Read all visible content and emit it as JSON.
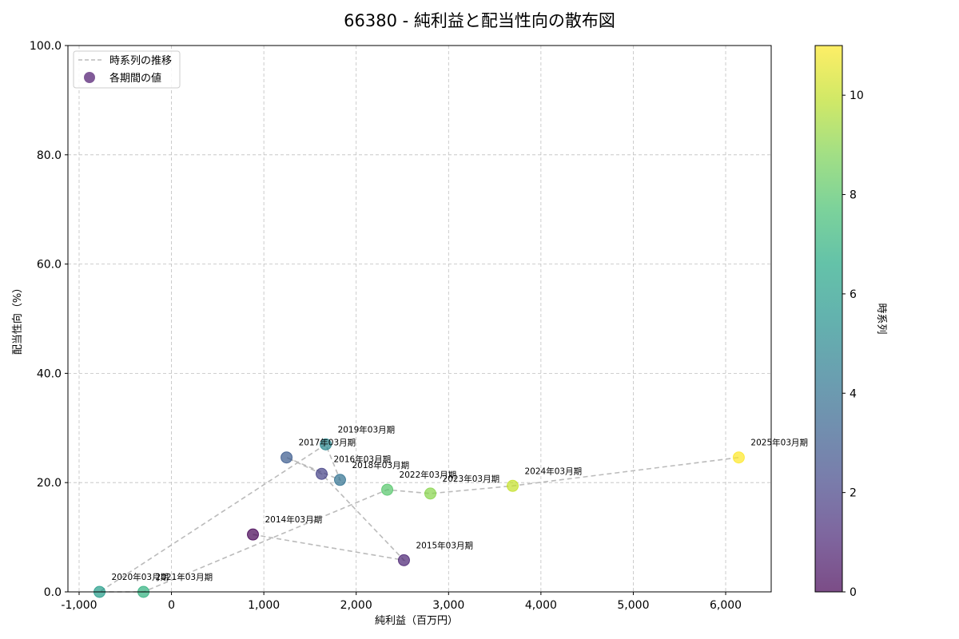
{
  "chart_data": {
    "type": "scatter",
    "title": "66380 - 純利益と配当性向の散布図",
    "xlabel": "純利益（百万円）",
    "ylabel": "配当性向（%）",
    "xlim": [
      -1121,
      6493
    ],
    "ylim": [
      0,
      100
    ],
    "x_ticks": [
      -1000,
      0,
      1000,
      2000,
      3000,
      4000,
      5000,
      6000
    ],
    "x_tick_labels": [
      "-1,000",
      "0",
      "1,000",
      "2,000",
      "3,000",
      "4,000",
      "5,000",
      "6,000"
    ],
    "y_ticks": [
      0,
      20,
      40,
      60,
      80,
      100
    ],
    "y_tick_labels": [
      "0.0",
      "20.0",
      "40.0",
      "60.0",
      "80.0",
      "100.0"
    ],
    "grid": true,
    "legend": {
      "position": "upper left",
      "entries": [
        {
          "label": "時系列の推移",
          "style": "dashed-line",
          "color": "#bbbbbb"
        },
        {
          "label": "各期間の値",
          "style": "marker",
          "color": "#6a3d86"
        }
      ]
    },
    "colorbar": {
      "label": "時系列",
      "min": 0,
      "max": 11,
      "ticks": [
        0,
        2,
        4,
        6,
        8,
        10
      ],
      "colormap": "viridis"
    },
    "points": [
      {
        "label": "2014年03月期",
        "x": 882,
        "y": 10.5,
        "c": 0
      },
      {
        "label": "2015年03月期",
        "x": 2517,
        "y": 5.8,
        "c": 1
      },
      {
        "label": "2016年03月期",
        "x": 1626,
        "y": 21.6,
        "c": 2
      },
      {
        "label": "2017年03月期",
        "x": 1246,
        "y": 24.6,
        "c": 3
      },
      {
        "label": "2018年03月期",
        "x": 1825,
        "y": 20.5,
        "c": 4
      },
      {
        "label": "2019年03月期",
        "x": 1670,
        "y": 27.0,
        "c": 5
      },
      {
        "label": "2020年03月期",
        "x": -779,
        "y": 0.0,
        "c": 6
      },
      {
        "label": "2021年03月期",
        "x": -303,
        "y": 0.0,
        "c": 7
      },
      {
        "label": "2022年03月期",
        "x": 2336,
        "y": 18.7,
        "c": 8
      },
      {
        "label": "2023年03月期",
        "x": 2803,
        "y": 18.0,
        "c": 9
      },
      {
        "label": "2024年03月期",
        "x": 3694,
        "y": 19.4,
        "c": 10
      },
      {
        "label": "2025年03月期",
        "x": 6142,
        "y": 24.6,
        "c": 11
      }
    ],
    "line": {
      "style": "dashed",
      "color": "#bbbbbb",
      "order": "chronological"
    }
  }
}
